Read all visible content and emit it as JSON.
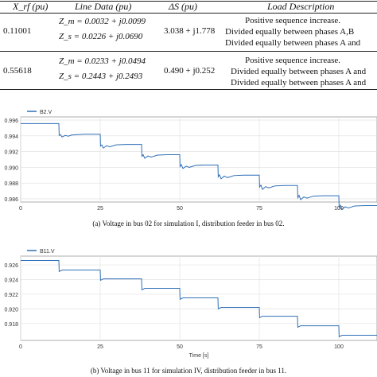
{
  "table": {
    "headers": [
      "X_rf (pu)",
      "Line Data (pu)",
      "ΔS (pu)",
      "Load Description"
    ],
    "rows": [
      {
        "xrf": "0.11001",
        "line_zm": "Z_m = 0.0032 + j0.0099",
        "line_zs": "Z_s = 0.0226 + j0.0690",
        "ds": "3.038 + j1.778",
        "load": [
          "Positive sequence increase.",
          "Divided equally between phases A,B",
          "Divided equally between phases A and"
        ]
      },
      {
        "xrf": "0.55618",
        "line_zm": "Z_m = 0.0233 + j0.0494",
        "line_zs": "Z_s = 0.2443 + j0.2493",
        "ds": "0.490 + j0.252",
        "load": [
          "Positive sequence increase.",
          "Divided equally between phases A and",
          "Divided equally between phases A and"
        ]
      }
    ]
  },
  "chart_data": [
    {
      "type": "line",
      "series": [
        {
          "name": "B2.V",
          "color": "#2f6fb7",
          "x": [
            0,
            12,
            12.1,
            12.5,
            13,
            14,
            15,
            16,
            18,
            20,
            24,
            25,
            25.1,
            25.5,
            26,
            27,
            28,
            30,
            33,
            37,
            38,
            38.1,
            38.5,
            39,
            40,
            41,
            43,
            46,
            49,
            50,
            50.1,
            50.5,
            51,
            52,
            53,
            55,
            58,
            61,
            62,
            62.1,
            62.5,
            63,
            64,
            65,
            67,
            70,
            74,
            75,
            75.1,
            75.5,
            76,
            77,
            78,
            80,
            83,
            86,
            87,
            87.1,
            87.5,
            88,
            89,
            90,
            92,
            95,
            99,
            100,
            100.1,
            100.5,
            101,
            102,
            103,
            105,
            108,
            112
          ],
          "values": [
            0.99555,
            0.99555,
            0.99405,
            0.99415,
            0.99385,
            0.99405,
            0.99395,
            0.9941,
            0.99415,
            0.9942,
            0.9942,
            0.9942,
            0.9927,
            0.99285,
            0.99245,
            0.99275,
            0.9926,
            0.99285,
            0.9929,
            0.9929,
            0.9929,
            0.9914,
            0.9916,
            0.99115,
            0.99145,
            0.9913,
            0.99155,
            0.9916,
            0.9916,
            0.9916,
            0.9901,
            0.99035,
            0.98985,
            0.99015,
            0.99,
            0.99025,
            0.9903,
            0.9903,
            0.9903,
            0.9888,
            0.98905,
            0.98855,
            0.9889,
            0.9887,
            0.98895,
            0.989,
            0.989,
            0.989,
            0.9875,
            0.98775,
            0.9872,
            0.98755,
            0.9874,
            0.98765,
            0.9877,
            0.9877,
            0.9877,
            0.98615,
            0.98645,
            0.9859,
            0.98625,
            0.9861,
            0.98635,
            0.9864,
            0.9864,
            0.9864,
            0.9849,
            0.9852,
            0.98465,
            0.985,
            0.98485,
            0.9851,
            0.98515,
            0.98515
          ]
        }
      ],
      "yticks": [
        "0.996",
        "0.994",
        "0.992",
        "0.990",
        "0.988",
        "0.986"
      ],
      "xticks": [
        "0",
        "25",
        "50",
        "75",
        "100"
      ],
      "ylim": [
        0.9856,
        0.9964
      ],
      "xlim": [
        0,
        112
      ],
      "grid": true,
      "legend": "top-left",
      "xlabel": "",
      "ylabel": ""
    },
    {
      "type": "line",
      "series": [
        {
          "name": "B11.V",
          "color": "#2f6fb7",
          "x": [
            0,
            12,
            12.1,
            13,
            25,
            25.1,
            26,
            38,
            38.1,
            39,
            50,
            50.1,
            51,
            62,
            62.1,
            63,
            75,
            75.1,
            76,
            87,
            87.1,
            88,
            100,
            100.1,
            101,
            112
          ],
          "values": [
            0.9266,
            0.9266,
            0.9251,
            0.9253,
            0.9253,
            0.9239,
            0.9241,
            0.9241,
            0.9226,
            0.9228,
            0.9228,
            0.9213,
            0.9215,
            0.9215,
            0.92,
            0.9202,
            0.9202,
            0.9188,
            0.919,
            0.919,
            0.9175,
            0.9177,
            0.9177,
            0.9162,
            0.9164,
            0.9164
          ]
        }
      ],
      "yticks": [
        "0.926",
        "0.924",
        "0.922",
        "0.920",
        "0.918"
      ],
      "xticks": [
        "0",
        "25",
        "50",
        "75",
        "100"
      ],
      "ylim": [
        0.9157,
        0.9272
      ],
      "xlim": [
        0,
        112
      ],
      "grid": true,
      "legend": "top-left",
      "xlabel": "Time [s]",
      "ylabel": ""
    }
  ],
  "captions": [
    "(a)  Voltage in bus 02 for simulation I, distribution feeder in bus 02.",
    "(b)  Voltage in bus 11 for simulation IV, distribution feeder in bus 11."
  ]
}
